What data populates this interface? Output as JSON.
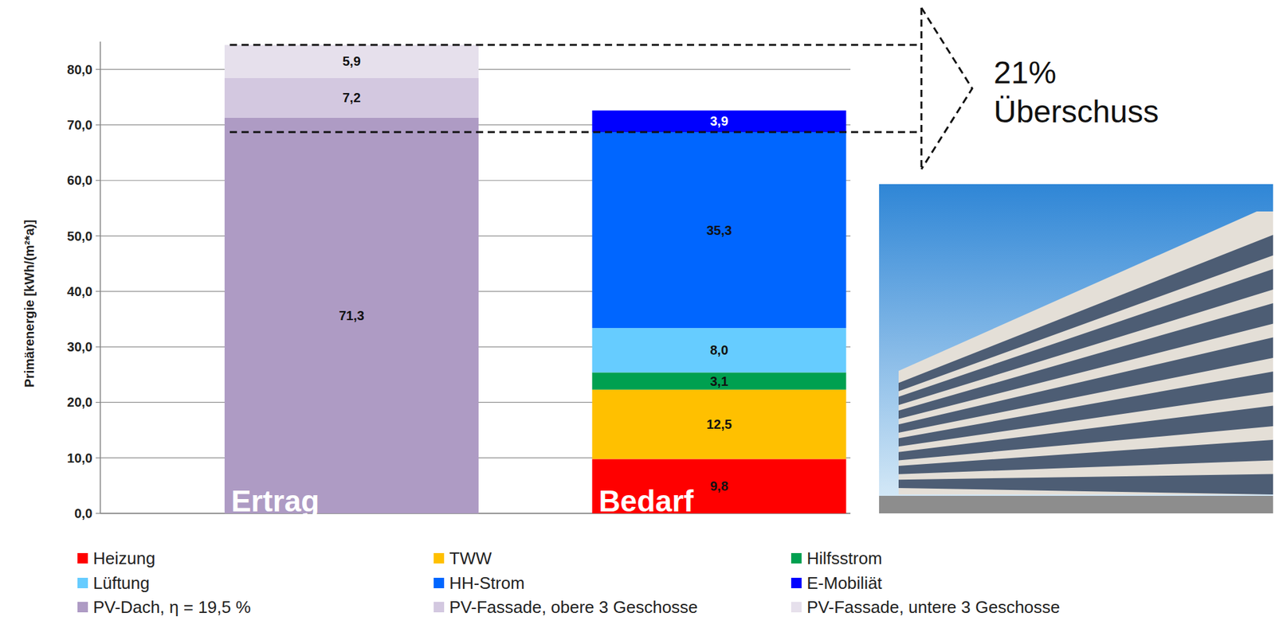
{
  "chart_data": {
    "type": "bar",
    "stacked": true,
    "data_labels": true,
    "grid": true,
    "legend": "bottom",
    "y_label": "Primärenergie  [kWh/(m²*a)]",
    "categories": [
      "Ertrag",
      "Bedarf"
    ],
    "ylim": [
      0,
      85
    ],
    "yticks": [
      {
        "value": 0,
        "label": "0,0"
      },
      {
        "value": 10,
        "label": "10,0"
      },
      {
        "value": 20,
        "label": "20,0"
      },
      {
        "value": 30,
        "label": "30,0"
      },
      {
        "value": 40,
        "label": "40,0"
      },
      {
        "value": 50,
        "label": "50,0"
      },
      {
        "value": 60,
        "label": "60,0"
      },
      {
        "value": 70,
        "label": "70,0"
      },
      {
        "value": 80,
        "label": "80,0"
      }
    ],
    "annotations": [
      "21%",
      "Überschuss"
    ],
    "series": [
      {
        "name": "Heizung",
        "color": "#ff0000",
        "values": [
          null,
          9.8
        ],
        "value_labels": [
          null,
          "9,8"
        ]
      },
      {
        "name": "TWW",
        "color": "#ffc000",
        "values": [
          null,
          12.5
        ],
        "value_labels": [
          null,
          "12,5"
        ]
      },
      {
        "name": "Hilfsstrom",
        "color": "#00a050",
        "values": [
          null,
          3.1
        ],
        "value_labels": [
          null,
          "3,1"
        ]
      },
      {
        "name": "Lüftung",
        "color": "#66ccff",
        "values": [
          null,
          8.0
        ],
        "value_labels": [
          null,
          "8,0"
        ]
      },
      {
        "name": "HH-Strom",
        "color": "#0066ff",
        "values": [
          null,
          35.3
        ],
        "value_labels": [
          null,
          "35,3"
        ]
      },
      {
        "name": "E-Mobiliät",
        "color": "#0000ff",
        "values": [
          null,
          3.9
        ],
        "value_labels": [
          null,
          "3,9"
        ]
      },
      {
        "name": "PV-Dach, η = 19,5 %",
        "color": "#ae9bc4",
        "values": [
          71.3,
          null
        ],
        "value_labels": [
          "71,3",
          null
        ]
      },
      {
        "name": "PV-Fassade, obere 3 Geschosse",
        "color": "#d3c8e0",
        "values": [
          7.2,
          null
        ],
        "value_labels": [
          "7,2",
          null
        ]
      },
      {
        "name": "PV-Fassade, untere 3 Geschosse",
        "color": "#e6e0ec",
        "values": [
          5.9,
          null
        ],
        "value_labels": [
          "5,9",
          null
        ]
      }
    ]
  }
}
